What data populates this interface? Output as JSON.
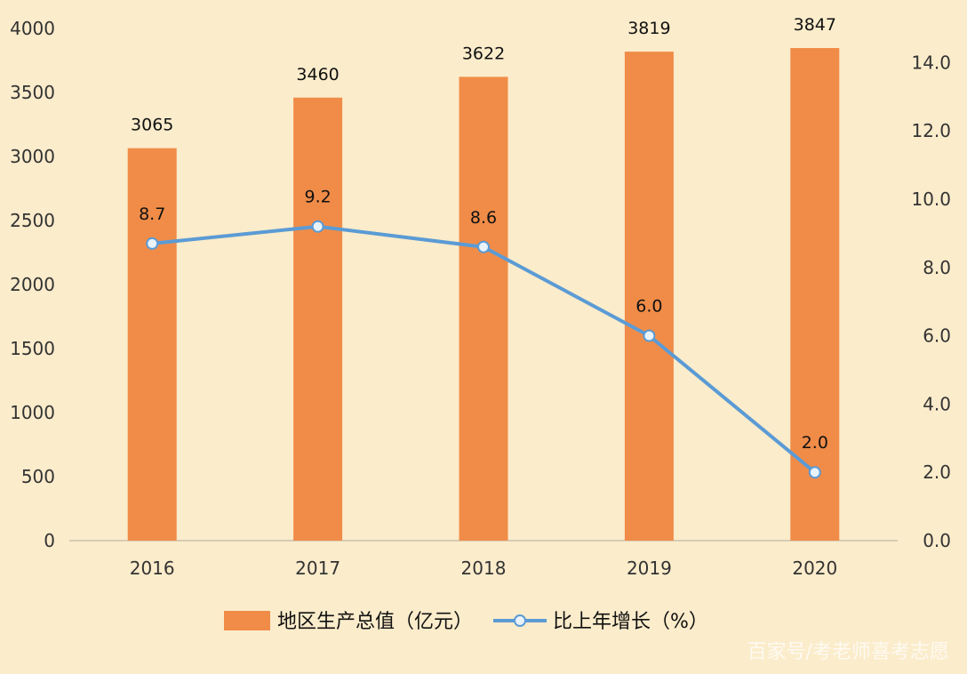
{
  "chart_data": {
    "type": "bar",
    "categories": [
      "2016",
      "2017",
      "2018",
      "2019",
      "2020"
    ],
    "series": [
      {
        "name": "地区生产总值（亿元）",
        "type": "bar",
        "axis": "left",
        "values": [
          3065,
          3460,
          3622,
          3819,
          3847
        ],
        "labels": [
          "3065",
          "3460",
          "3622",
          "3819",
          "3847"
        ],
        "color": "#f08c48"
      },
      {
        "name": "比上年增长（%）",
        "type": "line",
        "axis": "right",
        "values": [
          8.7,
          9.2,
          8.6,
          6.0,
          2.0
        ],
        "labels": [
          "8.7",
          "9.2",
          "8.6",
          "6.0",
          "2.0"
        ],
        "color": "#5b9bd5"
      }
    ],
    "left_axis": {
      "range": [
        0,
        4000
      ],
      "ticks": [
        0,
        500,
        1000,
        1500,
        2000,
        2500,
        3000,
        3500,
        4000
      ],
      "tick_labels": [
        "0",
        "500",
        "1000",
        "1500",
        "2000",
        "2500",
        "3000",
        "3500",
        "4000"
      ]
    },
    "right_axis": {
      "range": [
        0,
        15
      ],
      "ticks": [
        0,
        2,
        4,
        6,
        8,
        10,
        12,
        14
      ],
      "tick_labels": [
        "0.0",
        "2.0",
        "4.0",
        "6.0",
        "8.0",
        "10.0",
        "12.0",
        "14.0"
      ]
    },
    "grid": false,
    "legend_position": "bottom",
    "title": "",
    "xlabel": "",
    "ylabel": ""
  },
  "watermark": "百家号/考老师喜考志愿"
}
